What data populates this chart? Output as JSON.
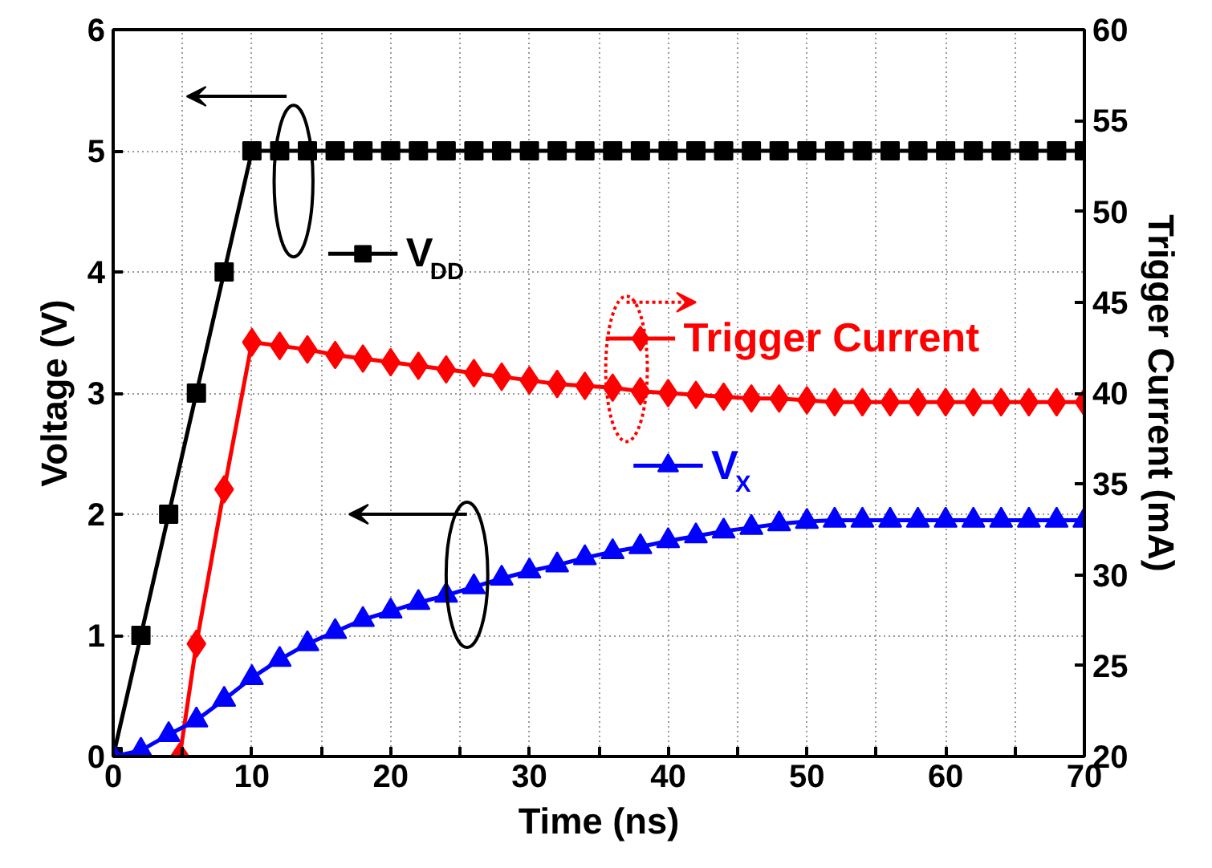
{
  "chart_data": {
    "type": "line",
    "xlabel": "Time (ns)",
    "ylabel": "Voltage (V)",
    "y2label": "Trigger Current (mA)",
    "xlim": [
      0,
      70
    ],
    "xticks": [
      0,
      {
        "value": 5,
        "label": null
      },
      10,
      {
        "value": 15,
        "label": null
      },
      20,
      {
        "value": 25,
        "label": null
      },
      30,
      {
        "value": 35,
        "label": null
      },
      40,
      {
        "value": 45,
        "label": null
      },
      50,
      {
        "value": 55,
        "label": null
      },
      60,
      {
        "value": 65,
        "label": null
      },
      70
    ],
    "ylim": [
      0,
      6
    ],
    "yticks": [
      0,
      1,
      2,
      3,
      4,
      5,
      6
    ],
    "y2lim": [
      20,
      60
    ],
    "y2ticks": [
      20,
      25,
      30,
      35,
      40,
      45,
      50,
      55,
      60
    ],
    "grid": true,
    "line_style": "solid",
    "legend": "center",
    "series": [
      {
        "name": "V$_{DD}$",
        "color": "#000000",
        "marker": "square",
        "x": [
          0,
          2,
          4,
          6,
          8,
          10,
          12,
          14,
          16,
          18,
          20,
          22,
          24,
          26,
          28,
          30,
          32,
          34,
          36,
          38,
          40,
          42,
          44,
          46,
          48,
          50,
          52,
          54,
          56,
          58,
          60,
          62,
          64,
          66,
          68,
          70
        ],
        "values": [
          0,
          1,
          2,
          3,
          4,
          5,
          5,
          5,
          5,
          5,
          5,
          5,
          5,
          5,
          5,
          5,
          5,
          5,
          5,
          5,
          5,
          5,
          5,
          5,
          5,
          5,
          5,
          5,
          5,
          5,
          5,
          5,
          5,
          5,
          5,
          5
        ]
      },
      {
        "name": "Trigger Current",
        "color": "#ff0000",
        "marker": "diamond",
        "axis": "y2",
        "x": [
          4.8,
          6,
          8,
          10,
          12,
          14,
          16,
          18,
          20,
          22,
          24,
          26,
          28,
          30,
          32,
          34,
          36,
          38,
          40,
          42,
          44,
          46,
          48,
          50,
          52,
          54,
          56,
          58,
          60,
          62,
          64,
          66,
          68,
          70
        ],
        "values": [
          20,
          26.2,
          34.7,
          42.8,
          42.6,
          42.4,
          42.1,
          41.9,
          41.7,
          41.5,
          41.3,
          41.1,
          40.9,
          40.7,
          40.5,
          40.4,
          40.3,
          40.1,
          40.0,
          39.9,
          39.8,
          39.7,
          39.7,
          39.6,
          39.5,
          39.5,
          39.5,
          39.5,
          39.5,
          39.5,
          39.5,
          39.5,
          39.5,
          39.5
        ]
      },
      {
        "name": "V$_{X}$",
        "color": "#0000ff",
        "marker": "triangle",
        "x": [
          0,
          2,
          4,
          6,
          8,
          10,
          12,
          14,
          16,
          18,
          20,
          22,
          24,
          26,
          28,
          30,
          32,
          34,
          36,
          38,
          40,
          42,
          44,
          46,
          48,
          50,
          52,
          54,
          56,
          58,
          60,
          62,
          64,
          66,
          68,
          70
        ],
        "values": [
          0,
          0.05,
          0.18,
          0.3,
          0.47,
          0.65,
          0.8,
          0.93,
          1.03,
          1.13,
          1.2,
          1.27,
          1.33,
          1.4,
          1.47,
          1.53,
          1.58,
          1.64,
          1.69,
          1.73,
          1.78,
          1.82,
          1.86,
          1.89,
          1.92,
          1.94,
          1.95,
          1.95,
          1.95,
          1.95,
          1.95,
          1.95,
          1.95,
          1.95,
          1.95,
          1.95
        ]
      }
    ]
  }
}
